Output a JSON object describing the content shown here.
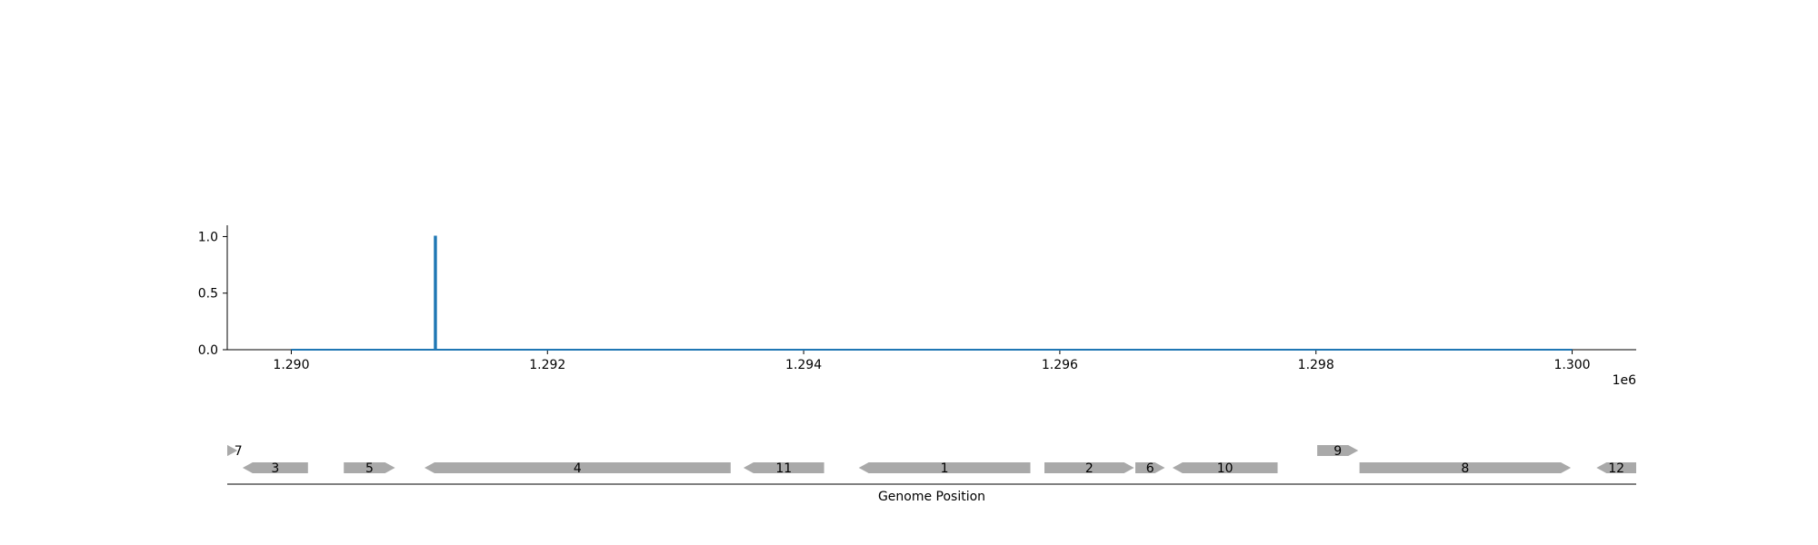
{
  "chart_data": [
    {
      "type": "line",
      "title": "",
      "xlabel": "",
      "ylabel": "",
      "x_offset_label": "1e6",
      "xlim": [
        1289500,
        1300500
      ],
      "ylim": [
        0,
        1.1
      ],
      "x_ticks": [
        1290000,
        1292000,
        1294000,
        1296000,
        1298000,
        1300000
      ],
      "x_tick_labels": [
        "1.290",
        "1.292",
        "1.294",
        "1.296",
        "1.298",
        "1.300"
      ],
      "y_ticks": [
        0.0,
        0.5,
        1.0
      ],
      "y_tick_labels": [
        "0.0",
        "0.5",
        "1.0"
      ],
      "grid": false,
      "series": [
        {
          "color": "#1f77b4",
          "points": [
            [
              1290000,
              0
            ],
            [
              1291120,
              0
            ],
            [
              1291120,
              1.0
            ],
            [
              1291130,
              1.0
            ],
            [
              1291130,
              0
            ],
            [
              1300000,
              0
            ]
          ]
        }
      ]
    },
    {
      "type": "gene-track",
      "xlabel": "Genome Position",
      "xlim": [
        1289500,
        1300500
      ],
      "feature_color": "#a9a9a9",
      "features": [
        {
          "label": "7",
          "start": 1289500,
          "end": 1289580,
          "strand": 1,
          "row": 1
        },
        {
          "label": "3",
          "start": 1289620,
          "end": 1290130,
          "strand": -1,
          "row": 0
        },
        {
          "label": "5",
          "start": 1290410,
          "end": 1290810,
          "strand": 1,
          "row": 0
        },
        {
          "label": "4",
          "start": 1291040,
          "end": 1293430,
          "strand": -1,
          "row": 0
        },
        {
          "label": "11",
          "start": 1293530,
          "end": 1294160,
          "strand": -1,
          "row": 0
        },
        {
          "label": "1",
          "start": 1294430,
          "end": 1295770,
          "strand": -1,
          "row": 0
        },
        {
          "label": "2",
          "start": 1295880,
          "end": 1296580,
          "strand": 1,
          "row": 0
        },
        {
          "label": "6",
          "start": 1296590,
          "end": 1296820,
          "strand": 1,
          "row": 0
        },
        {
          "label": "10",
          "start": 1296880,
          "end": 1297700,
          "strand": -1,
          "row": 0
        },
        {
          "label": "9",
          "start": 1298010,
          "end": 1298330,
          "strand": 1,
          "row": 1
        },
        {
          "label": "8",
          "start": 1298340,
          "end": 1299990,
          "strand": 1,
          "row": 0
        },
        {
          "label": "12",
          "start": 1300190,
          "end": 1300500,
          "strand": -1,
          "row": 0
        }
      ]
    }
  ]
}
